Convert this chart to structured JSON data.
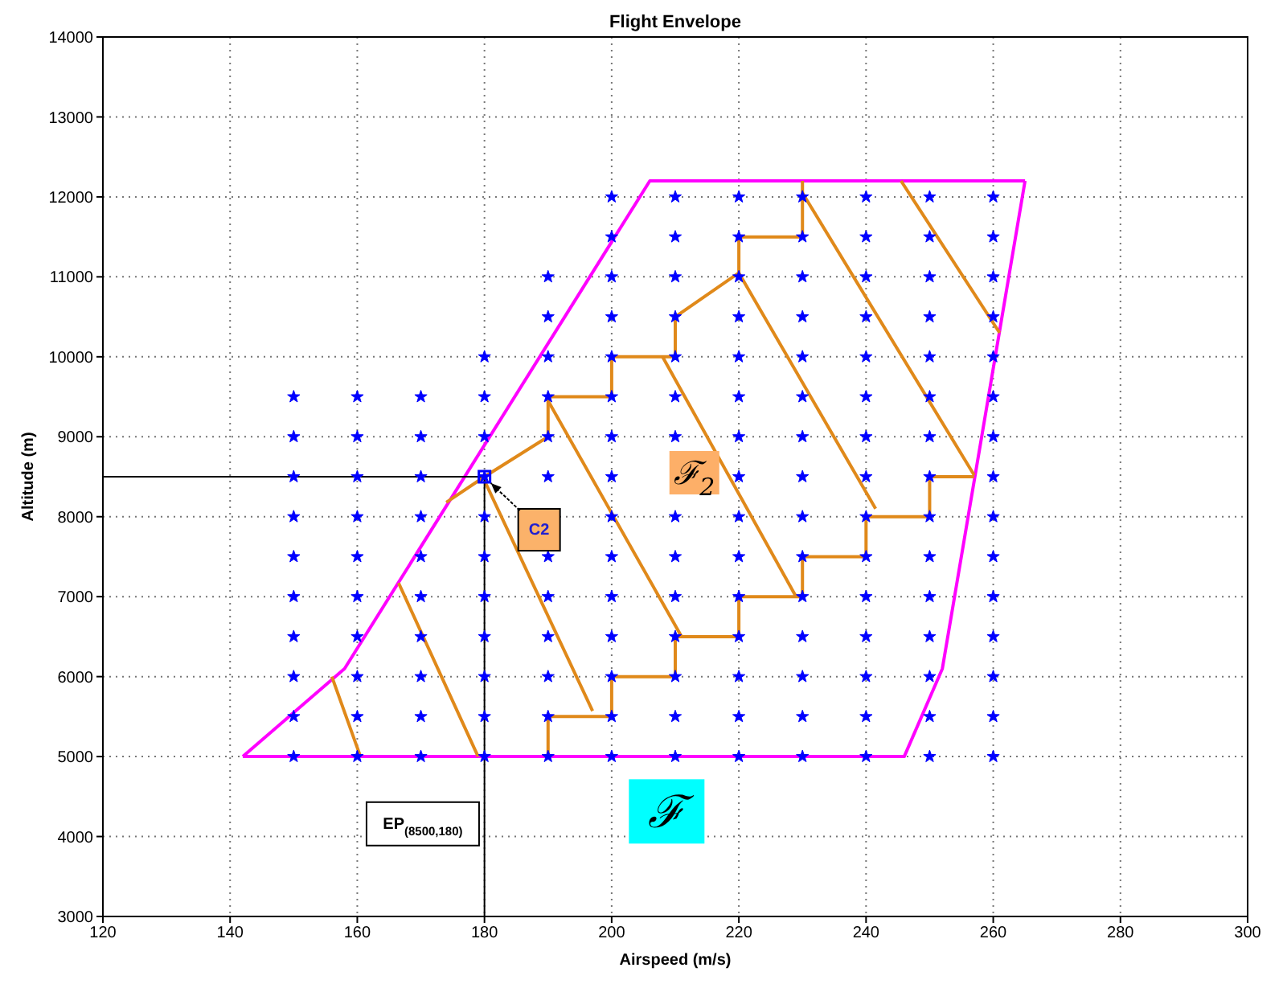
{
  "chart_data": {
    "type": "scatter",
    "title": "Flight Envelope",
    "xlabel": "Airspeed (m/s)",
    "ylabel": "Altitude (m)",
    "xlim": [
      120,
      300
    ],
    "xticks": [
      120,
      140,
      160,
      180,
      200,
      220,
      240,
      260,
      280,
      300
    ],
    "ylim": [
      3000,
      14000
    ],
    "yticks": [
      3000,
      4000,
      5000,
      6000,
      7000,
      8000,
      9000,
      10000,
      11000,
      12000,
      13000,
      14000
    ],
    "grid": true,
    "series": [
      {
        "type": "line",
        "marker": "none",
        "color": "#ff00ff",
        "x": [
          142,
          158,
          206,
          265
        ],
        "values": [
          5000,
          6100,
          12200,
          12200
        ]
      },
      {
        "type": "line",
        "marker": "none",
        "color": "#ff00ff",
        "x": [
          265,
          252,
          246,
          142
        ],
        "values": [
          12200,
          6100,
          5000,
          5000
        ]
      },
      {
        "type": "line",
        "marker": "none",
        "color": "#e0891a",
        "x": [
          156,
          160.5
        ],
        "values": [
          6000,
          5000
        ]
      },
      {
        "type": "line",
        "marker": "none",
        "color": "#e0891a",
        "x": [
          166.5,
          179
        ],
        "values": [
          7170,
          5000
        ]
      },
      {
        "type": "line",
        "marker": "none",
        "color": "#e0891a",
        "x": [
          174,
          180,
          190,
          190,
          200,
          200,
          210,
          210,
          220,
          220,
          230,
          230
        ],
        "values": [
          8180,
          8500,
          9000,
          9500,
          9500,
          10000,
          10000,
          10500,
          11050,
          11500,
          11500,
          12200
        ]
      },
      {
        "type": "line",
        "marker": "none",
        "color": "#e0891a",
        "x": [
          180,
          197
        ],
        "values": [
          8450,
          5570
        ]
      },
      {
        "type": "line",
        "marker": "none",
        "color": "#e0891a",
        "x": [
          190,
          190,
          200,
          200,
          210,
          210,
          220,
          220,
          230,
          230,
          240,
          240,
          250,
          250,
          257
        ],
        "values": [
          5000,
          5500,
          5500,
          6000,
          6000,
          6500,
          6500,
          7000,
          7000,
          7500,
          7500,
          8000,
          8000,
          8500,
          8500
        ]
      },
      {
        "type": "line",
        "marker": "none",
        "color": "#e0891a",
        "x": [
          190,
          211
        ],
        "values": [
          9450,
          6500
        ]
      },
      {
        "type": "line",
        "marker": "none",
        "color": "#e0891a",
        "x": [
          208,
          229
        ],
        "values": [
          10000,
          7000
        ]
      },
      {
        "type": "line",
        "marker": "none",
        "color": "#e0891a",
        "x": [
          220,
          241.5
        ],
        "values": [
          11050,
          8100
        ]
      },
      {
        "type": "line",
        "marker": "none",
        "color": "#e0891a",
        "x": [
          230,
          257
        ],
        "values": [
          12050,
          8520
        ]
      },
      {
        "type": "line",
        "marker": "none",
        "color": "#e0891a",
        "x": [
          245.5,
          261
        ],
        "values": [
          12200,
          10300
        ]
      },
      {
        "type": "line",
        "marker": "none",
        "color": "#000000",
        "x": [
          120,
          180,
          180
        ],
        "values": [
          8500,
          8500,
          3000
        ]
      },
      {
        "marker": "star",
        "color": "#0000ff",
        "x": [
          150,
          150,
          150,
          150,
          150,
          150,
          150,
          150,
          150,
          150,
          160,
          160,
          160,
          160,
          160,
          160,
          160,
          160,
          160,
          160,
          170,
          170,
          170,
          170,
          170,
          170,
          170,
          170,
          170,
          170,
          180,
          180,
          180,
          180,
          180,
          180,
          180,
          180,
          180,
          180,
          180,
          190,
          190,
          190,
          190,
          190,
          190,
          190,
          190,
          190,
          190,
          190,
          190,
          200,
          200,
          200,
          200,
          200,
          200,
          200,
          200,
          200,
          200,
          200,
          200,
          200,
          200,
          200,
          210,
          210,
          210,
          210,
          210,
          210,
          210,
          210,
          210,
          210,
          210,
          210,
          210,
          210,
          220,
          220,
          220,
          220,
          220,
          220,
          220,
          220,
          220,
          220,
          220,
          220,
          220,
          220,
          220,
          230,
          230,
          230,
          230,
          230,
          230,
          230,
          230,
          230,
          230,
          230,
          230,
          230,
          230,
          230,
          240,
          240,
          240,
          240,
          240,
          240,
          240,
          240,
          240,
          240,
          240,
          240,
          240,
          240,
          240,
          250,
          250,
          250,
          250,
          250,
          250,
          250,
          250,
          250,
          250,
          250,
          250,
          250,
          250,
          250,
          260,
          260,
          260,
          260,
          260,
          260,
          260,
          260,
          260,
          260,
          260,
          260,
          260,
          260,
          260
        ],
        "values": [
          5000,
          5500,
          6000,
          6500,
          7000,
          7500,
          8000,
          8500,
          9000,
          9500,
          5000,
          5500,
          6000,
          6500,
          7000,
          7500,
          8000,
          8500,
          9000,
          9500,
          5000,
          5500,
          6000,
          6500,
          7000,
          7500,
          8000,
          8500,
          9000,
          9500,
          5000,
          5500,
          6000,
          6500,
          7000,
          7500,
          8000,
          8500,
          9000,
          9500,
          10000,
          5000,
          5500,
          6000,
          6500,
          7000,
          7500,
          8500,
          9000,
          9500,
          10000,
          10500,
          11000,
          5000,
          5500,
          6000,
          6500,
          7000,
          7500,
          8000,
          8500,
          9000,
          9500,
          10000,
          10500,
          11000,
          11500,
          12000,
          5000,
          5500,
          6000,
          6500,
          7000,
          7500,
          8000,
          9000,
          9500,
          10000,
          10500,
          11000,
          11500,
          12000,
          5000,
          5500,
          6000,
          6500,
          7000,
          7500,
          8000,
          8500,
          9000,
          9500,
          10000,
          10500,
          11000,
          11500,
          12000,
          5000,
          5500,
          6000,
          6500,
          7000,
          7500,
          8000,
          8500,
          9000,
          9500,
          10000,
          10500,
          11000,
          11500,
          12000,
          5000,
          5500,
          6000,
          6500,
          7000,
          7500,
          8000,
          8500,
          9000,
          9500,
          10000,
          10500,
          11000,
          11500,
          12000,
          5000,
          5500,
          6000,
          6500,
          7000,
          7500,
          8000,
          8500,
          9000,
          9500,
          10000,
          10500,
          11000,
          11500,
          12000,
          5000,
          5500,
          6000,
          6500,
          7000,
          7500,
          8000,
          8500,
          9000,
          9500,
          10000,
          10500,
          11000,
          11500,
          12000
        ]
      },
      {
        "marker": "square",
        "color": "#0000ff",
        "x": [
          180
        ],
        "values": [
          8500
        ]
      }
    ],
    "annotations": [
      {
        "text": "C2",
        "x": 180,
        "y": 8500
      },
      "EP$_{(8500,180)}$",
      {
        "text": "ℱ$_{2}$",
        "x": 213,
        "y": 8550
      },
      "ℱ"
    ]
  }
}
